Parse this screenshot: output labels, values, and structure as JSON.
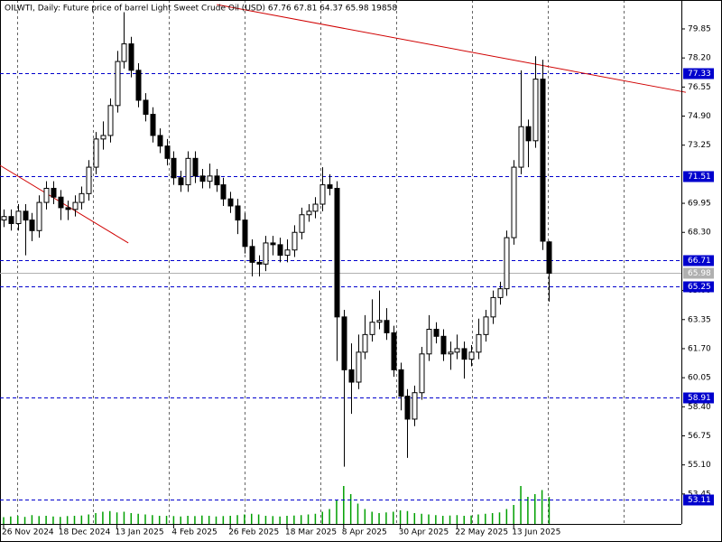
{
  "chart_data": {
    "type": "candlestick",
    "title": "OILWTI, Daily:  Future price of barrel Light Sweet Crude Oil (USD)  67.76 67.81 64.37 65.98  19858",
    "open": [
      69.0,
      69.2,
      68.8,
      69.5,
      69.0,
      68.4,
      70.0,
      70.8,
      70.3,
      69.7,
      69.6,
      70.0,
      70.5,
      72.0,
      73.6,
      73.8,
      75.5,
      78.0,
      79.0,
      77.5,
      75.8,
      75.0,
      73.8,
      73.2,
      72.5,
      71.4,
      71.0,
      72.5,
      71.5,
      71.2,
      71.5,
      71.0,
      70.2,
      69.8,
      69.0,
      67.5,
      66.6,
      66.5,
      67.7,
      67.6,
      67.0,
      67.3,
      68.3,
      69.3,
      69.5,
      69.9,
      71.0,
      70.8,
      63.5,
      60.5,
      59.8,
      61.5,
      62.5,
      63.2,
      63.3,
      62.6,
      60.5,
      59.0,
      57.7,
      59.2,
      61.4,
      62.8,
      62.4,
      61.4,
      61.5,
      61.7,
      61.1,
      61.5,
      62.5,
      63.5,
      64.6,
      65.1,
      68.0,
      72.0,
      74.3,
      73.5,
      77.0,
      67.76
    ],
    "high": [
      69.6,
      69.6,
      69.9,
      69.9,
      69.4,
      70.4,
      71.2,
      71.2,
      70.7,
      70.1,
      70.4,
      70.9,
      72.4,
      74.0,
      74.6,
      75.9,
      78.6,
      80.8,
      79.4,
      77.9,
      76.2,
      75.4,
      74.2,
      73.6,
      72.9,
      71.8,
      72.9,
      72.9,
      71.9,
      72.2,
      71.9,
      71.4,
      70.6,
      70.2,
      69.4,
      67.9,
      67.0,
      68.1,
      68.1,
      68.0,
      67.9,
      68.7,
      69.7,
      69.9,
      70.3,
      72.0,
      71.6,
      71.2,
      63.9,
      62.0,
      62.5,
      63.6,
      64.5,
      65.0,
      64.0,
      63.0,
      60.9,
      59.4,
      59.6,
      61.8,
      63.6,
      63.2,
      62.8,
      62.1,
      62.5,
      62.1,
      61.9,
      63.4,
      63.9,
      65.0,
      65.5,
      68.4,
      72.4,
      77.5,
      74.7,
      78.3,
      78.1,
      67.81
    ],
    "low": [
      68.6,
      68.4,
      68.4,
      67.0,
      67.8,
      68.0,
      69.6,
      69.9,
      69.0,
      69.0,
      69.2,
      69.6,
      70.1,
      71.6,
      73.0,
      73.4,
      75.1,
      77.6,
      77.1,
      75.4,
      74.6,
      73.4,
      72.8,
      72.1,
      71.0,
      70.6,
      70.6,
      71.1,
      70.8,
      70.8,
      70.6,
      69.8,
      69.4,
      68.2,
      67.1,
      65.8,
      65.8,
      66.1,
      67.0,
      66.6,
      66.6,
      66.9,
      67.9,
      68.9,
      69.1,
      69.5,
      70.4,
      61.0,
      55.0,
      58.0,
      59.4,
      61.1,
      62.1,
      62.8,
      62.2,
      60.1,
      58.2,
      55.5,
      57.3,
      58.8,
      61.0,
      62.0,
      61.0,
      60.5,
      61.1,
      60.0,
      60.7,
      61.1,
      62.1,
      63.1,
      64.2,
      64.7,
      67.6,
      71.6,
      72.0,
      73.1,
      67.3,
      64.37
    ],
    "close": [
      69.2,
      68.8,
      69.5,
      69.0,
      68.4,
      70.0,
      70.8,
      70.3,
      69.7,
      69.6,
      70.0,
      70.5,
      72.0,
      73.6,
      73.8,
      75.5,
      78.0,
      79.0,
      77.5,
      75.8,
      75.0,
      73.8,
      73.2,
      72.5,
      71.4,
      71.0,
      72.5,
      71.5,
      71.2,
      71.5,
      71.0,
      70.2,
      69.8,
      69.0,
      67.5,
      66.6,
      66.5,
      67.7,
      67.6,
      67.0,
      67.3,
      68.3,
      69.3,
      69.5,
      69.9,
      71.0,
      70.8,
      63.5,
      60.5,
      59.8,
      61.5,
      62.5,
      63.2,
      63.3,
      62.6,
      60.5,
      59.0,
      57.7,
      59.2,
      61.4,
      62.8,
      62.4,
      61.4,
      61.5,
      61.7,
      61.1,
      61.5,
      62.5,
      63.5,
      64.6,
      65.1,
      68.0,
      72.0,
      74.3,
      73.5,
      77.0,
      67.8,
      65.98
    ],
    "volume": [
      5000,
      5500,
      6000,
      5200,
      6500,
      5800,
      6000,
      5500,
      5200,
      5800,
      6000,
      6200,
      7000,
      8000,
      9000,
      9500,
      8500,
      9000,
      8000,
      7500,
      7000,
      6500,
      6000,
      6000,
      5800,
      5500,
      6000,
      5800,
      6200,
      6000,
      5500,
      5800,
      6000,
      6500,
      7000,
      7500,
      7000,
      6000,
      5800,
      5500,
      6000,
      6200,
      6500,
      7000,
      7500,
      9000,
      11000,
      18000,
      28000,
      22000,
      15000,
      11000,
      9000,
      8000,
      8500,
      9000,
      10000,
      9500,
      8000,
      7500,
      7000,
      6500,
      6000,
      6200,
      6500,
      6000,
      6200,
      7000,
      7500,
      8000,
      8500,
      11000,
      14000,
      28000,
      20000,
      22000,
      25000,
      19858
    ],
    "volume_ylim": [
      0,
      40000
    ],
    "volume_color": "#00a000",
    "up_color": "#ffffff",
    "down_color": "#000000",
    "ylim": [
      51.75,
      81.49
    ],
    "yticks": [
      79.85,
      {
        "value": 78.2,
        "label": "78.20"
      },
      76.55,
      {
        "value": 74.9,
        "label": "74.90"
      },
      73.25,
      69.95,
      {
        "value": 68.3,
        "label": "68.30"
      },
      {
        "value": 65,
        "label": "65.00"
      },
      63.35,
      {
        "value": 61.7,
        "label": "61.70"
      },
      60.05,
      {
        "value": 58.4,
        "label": "58.40"
      },
      56.75,
      {
        "value": 55.1,
        "label": "55.10"
      },
      53.45
    ],
    "xticks": [
      {
        "value": 0,
        "label": "26 Nov 2024"
      },
      {
        "value": 8,
        "label": "18 Dec 2024"
      },
      {
        "value": 16,
        "label": "13 Jan 2025"
      },
      {
        "value": 24,
        "label": "4 Feb 2025"
      },
      {
        "value": 32,
        "label": "26 Feb 2025"
      },
      {
        "value": 40,
        "label": "18 Mar 2025"
      },
      {
        "value": 48,
        "label": "8 Apr 2025"
      },
      {
        "value": 56,
        "label": "30 Apr 2025"
      },
      {
        "value": 64,
        "label": "22 May 2025"
      },
      {
        "value": 72,
        "label": "13 Jun 2025"
      }
    ],
    "levels": [
      {
        "value": 77.33,
        "color": "#0000cd"
      },
      {
        "value": 71.51,
        "color": "#0000cd"
      },
      {
        "value": 66.71,
        "color": "#0000cd"
      },
      {
        "value": 65.98,
        "color": "#b0b0b0"
      },
      {
        "value": 65.25,
        "color": "#0000cd"
      },
      {
        "value": 58.91,
        "color": "#0000cd"
      },
      {
        "value": 53.11,
        "color": "#0000cd"
      }
    ],
    "trendlines": [
      {
        "start": [
          30.1,
          81.23
        ],
        "end": [
          96.3,
          76.25
        ],
        "color": "#d00000"
      },
      {
        "start": [
          -0.5,
          72.1
        ],
        "end": [
          17.6,
          67.7
        ],
        "color": "#d00000"
      }
    ],
    "grid": true
  }
}
